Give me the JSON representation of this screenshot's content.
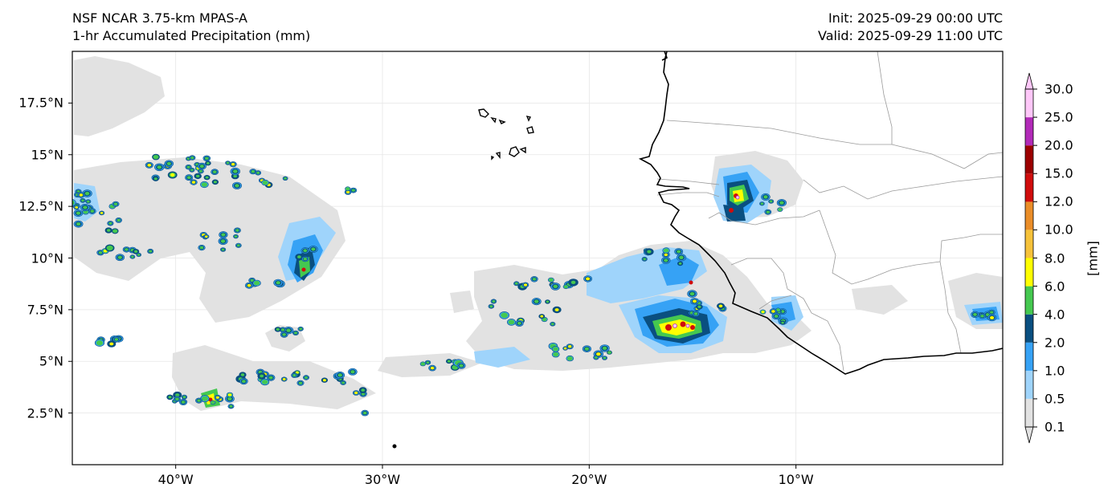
{
  "header": {
    "model": "NSF NCAR 3.75-km MPAS-A",
    "field": "1-hr Accumulated Precipitation (mm)",
    "init": "Init: 2025-09-29 00:00 UTC",
    "valid": "Valid: 2025-09-29 11:00 UTC"
  },
  "axes": {
    "lon_range": [
      -45,
      0
    ],
    "lat_range": [
      0,
      20
    ],
    "y_ticks": [
      {
        "value": 17.5,
        "label": "17.5°N"
      },
      {
        "value": 15,
        "label": "15°N"
      },
      {
        "value": 12.5,
        "label": "12.5°N"
      },
      {
        "value": 10,
        "label": "10°N"
      },
      {
        "value": 7.5,
        "label": "7.5°N"
      },
      {
        "value": 5,
        "label": "5°N"
      },
      {
        "value": 2.5,
        "label": "2.5°N"
      }
    ],
    "x_ticks": [
      {
        "value": -40,
        "label": "40°W"
      },
      {
        "value": -30,
        "label": "30°W"
      },
      {
        "value": -20,
        "label": "20°W"
      },
      {
        "value": -10,
        "label": "10°W"
      }
    ],
    "grid": true
  },
  "colorbar": {
    "unit": "[mm]",
    "levels": [
      "0.1",
      "0.5",
      "1.0",
      "2.0",
      "4.0",
      "6.0",
      "8.0",
      "10.0",
      "12.0",
      "15.0",
      "20.0",
      "25.0",
      "30.0"
    ],
    "colors": [
      "#e2e2e2",
      "#9fd4fb",
      "#36a2f5",
      "#0a4f80",
      "#45c850",
      "#ffff00",
      "#f6c23a",
      "#ea8d28",
      "#d00c0c",
      "#9c0000",
      "#b22ab8",
      "#fec7f8"
    ],
    "extend": "both"
  },
  "colors": {
    "land_outline": "#000000",
    "border": "#9a9a9a",
    "grid": "#e6e6e6"
  }
}
